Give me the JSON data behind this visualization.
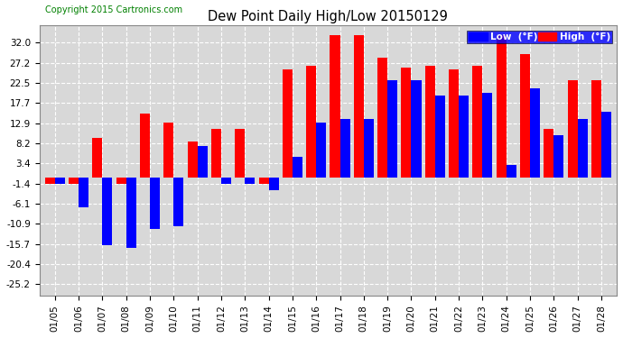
{
  "title": "Dew Point Daily High/Low 20150129",
  "copyright": "Copyright 2015 Cartronics.com",
  "dates": [
    "01/05",
    "01/06",
    "01/07",
    "01/08",
    "01/09",
    "01/10",
    "01/11",
    "01/12",
    "01/13",
    "01/14",
    "01/15",
    "01/16",
    "01/17",
    "01/18",
    "01/19",
    "01/20",
    "01/21",
    "01/22",
    "01/23",
    "01/24",
    "01/25",
    "01/26",
    "01/27",
    "01/28"
  ],
  "high": [
    -1.4,
    -1.4,
    9.5,
    -1.4,
    15.1,
    13.1,
    8.6,
    11.5,
    11.5,
    -1.4,
    25.7,
    26.5,
    33.8,
    33.8,
    28.4,
    26.1,
    26.6,
    25.7,
    26.6,
    33.8,
    29.3,
    11.5,
    23.0,
    23.0
  ],
  "low": [
    -1.4,
    -7.0,
    -16.0,
    -16.6,
    -12.2,
    -11.5,
    7.5,
    -1.4,
    -1.4,
    -3.0,
    5.0,
    13.0,
    14.0,
    14.0,
    23.0,
    23.0,
    19.4,
    19.4,
    20.2,
    3.0,
    21.2,
    10.0,
    14.0,
    15.7
  ],
  "high_color": "#ff0000",
  "low_color": "#0000ff",
  "bg_color": "#ffffff",
  "plot_bg_color": "#d8d8d8",
  "grid_color": "#ffffff",
  "yticks": [
    -25.2,
    -20.4,
    -15.7,
    -10.9,
    -6.1,
    -1.4,
    3.4,
    8.2,
    12.9,
    17.7,
    22.5,
    27.2,
    32.0
  ],
  "ylim": [
    -28,
    36
  ],
  "legend_low_label": "Low  (°F)",
  "legend_high_label": "High  (°F)"
}
